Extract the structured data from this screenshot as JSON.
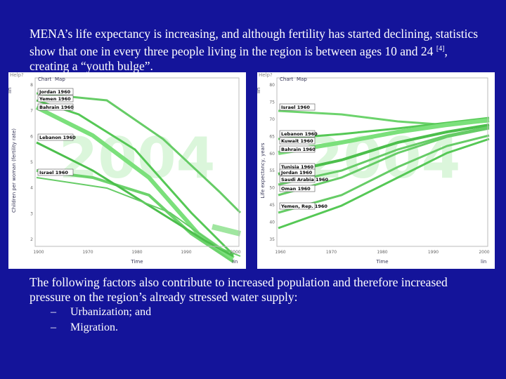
{
  "paragraph1": {
    "text": "MENA’s life expectancy is increasing, and although fertility has started declining, statistics show that one in every three people living in the region is between ages 10 and 24 ",
    "ref": "[4]",
    "tail": ", creating a “youth bulge”."
  },
  "panels": [
    {
      "help": "Help?",
      "tabs": [
        "Chart",
        "Map"
      ],
      "scale": "lin",
      "y_label": "Children per woman (fertility rate)",
      "x_label": "Time",
      "watermark": "2004",
      "yticks": [
        8,
        7,
        6,
        5,
        4,
        3,
        2
      ],
      "xticks": [
        1900,
        1970,
        1980,
        1990,
        2000
      ],
      "labels": [
        "Jordan 1960",
        "Yemen 1960",
        "Bahrain 1960",
        "Lebanon 1960",
        "Israel 1960"
      ]
    },
    {
      "help": "Help?",
      "tabs": [
        "Chart",
        "Map"
      ],
      "scale": "lin",
      "y_label": "Life expectancy, years",
      "x_label": "Time",
      "watermark": "2004",
      "yticks": [
        80,
        75,
        70,
        65,
        60,
        55,
        50,
        45,
        40,
        35
      ],
      "xticks": [
        1960,
        1970,
        1980,
        1990,
        2000
      ],
      "labels": [
        "Israel 1960",
        "Lebanon 1960",
        "Kuwait 1960",
        "Bahrain 1960",
        "Tunisia 1960",
        "Jordan 1960",
        "Saudi Arabia 1960",
        "Oman 1960",
        "Yemen, Rep. 1960"
      ]
    }
  ],
  "paragraph2": "The following factors also contribute to increased population and therefore increased pressure on the region’s already stressed water supply:",
  "bullets": [
    {
      "dash": "–",
      "text": "Urbanization; and"
    },
    {
      "dash": "–",
      "text": "Migration."
    }
  ]
}
